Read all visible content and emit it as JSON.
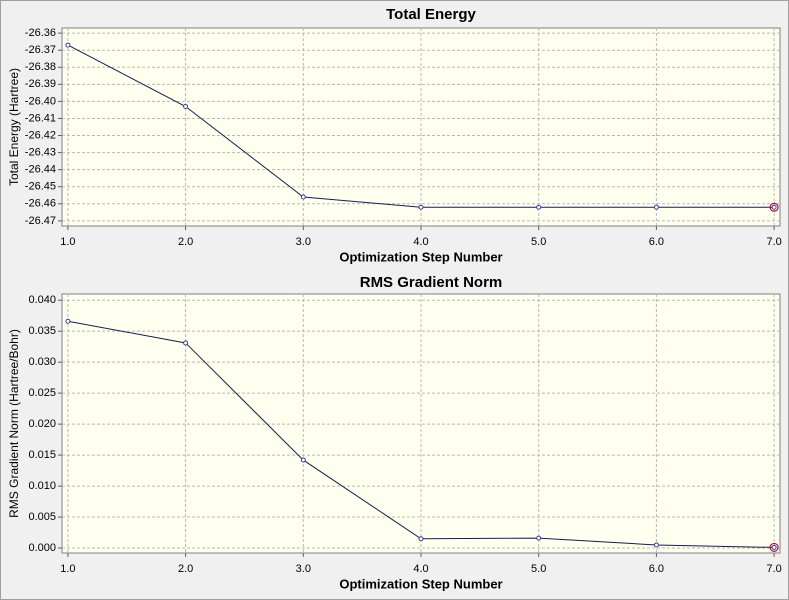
{
  "chart_data": [
    {
      "type": "line",
      "title": "Total Energy",
      "xlabel": "Optimization Step Number",
      "ylabel": "Total Energy (Hartree)",
      "x": [
        1,
        2,
        3,
        4,
        5,
        6,
        7
      ],
      "values": [
        -26.367,
        -26.403,
        -26.456,
        -26.462,
        -26.462,
        -26.462,
        -26.462
      ],
      "color": "#1c1c4a",
      "marker_color": "#3a3aa8",
      "highlight_color": "#b0103a",
      "xlim": [
        0.95,
        7.05
      ],
      "ylim": [
        -26.473,
        -26.357
      ],
      "xticks": [
        {
          "value": 1,
          "label": "1.0"
        },
        {
          "value": 2,
          "label": "2.0"
        },
        {
          "value": 3,
          "label": "3.0"
        },
        {
          "value": 4,
          "label": "4.0"
        },
        {
          "value": 5,
          "label": "5.0"
        },
        {
          "value": 6,
          "label": "6.0"
        },
        {
          "value": 7,
          "label": "7.0"
        }
      ],
      "yticks": [
        {
          "value": -26.36,
          "label": "-26.36"
        },
        {
          "value": -26.37,
          "label": "-26.37"
        },
        {
          "value": -26.38,
          "label": "-26.38"
        },
        {
          "value": -26.39,
          "label": "-26.39"
        },
        {
          "value": -26.4,
          "label": "-26.40"
        },
        {
          "value": -26.41,
          "label": "-26.41"
        },
        {
          "value": -26.42,
          "label": "-26.42"
        },
        {
          "value": -26.43,
          "label": "-26.43"
        },
        {
          "value": -26.44,
          "label": "-26.44"
        },
        {
          "value": -26.45,
          "label": "-26.45"
        },
        {
          "value": -26.46,
          "label": "-26.46"
        },
        {
          "value": -26.47,
          "label": "-26.47"
        }
      ],
      "grid": true
    },
    {
      "type": "line",
      "title": "RMS Gradient Norm",
      "xlabel": "Optimization Step Number",
      "ylabel": "RMS Gradient Norm (Hartree/Bohr)",
      "x": [
        1,
        2,
        3,
        4,
        5,
        6,
        7
      ],
      "values": [
        0.0366,
        0.0331,
        0.0142,
        0.0015,
        0.0016,
        0.0005,
        0.0001
      ],
      "color": "#1c1c4a",
      "marker_color": "#3a3aa8",
      "highlight_color": "#b0103a",
      "xlim": [
        0.95,
        7.05
      ],
      "ylim": [
        -0.0008,
        0.041
      ],
      "xticks": [
        {
          "value": 1,
          "label": "1.0"
        },
        {
          "value": 2,
          "label": "2.0"
        },
        {
          "value": 3,
          "label": "3.0"
        },
        {
          "value": 4,
          "label": "4.0"
        },
        {
          "value": 5,
          "label": "5.0"
        },
        {
          "value": 6,
          "label": "6.0"
        },
        {
          "value": 7,
          "label": "7.0"
        }
      ],
      "yticks": [
        {
          "value": 0,
          "label": "0.000"
        },
        {
          "value": 0.005,
          "label": "0.005"
        },
        {
          "value": 0.01,
          "label": "0.010"
        },
        {
          "value": 0.015,
          "label": "0.015"
        },
        {
          "value": 0.02,
          "label": "0.020"
        },
        {
          "value": 0.025,
          "label": "0.025"
        },
        {
          "value": 0.03,
          "label": "0.030"
        },
        {
          "value": 0.035,
          "label": "0.035"
        },
        {
          "value": 0.04,
          "label": "0.040"
        }
      ],
      "grid": true
    }
  ]
}
